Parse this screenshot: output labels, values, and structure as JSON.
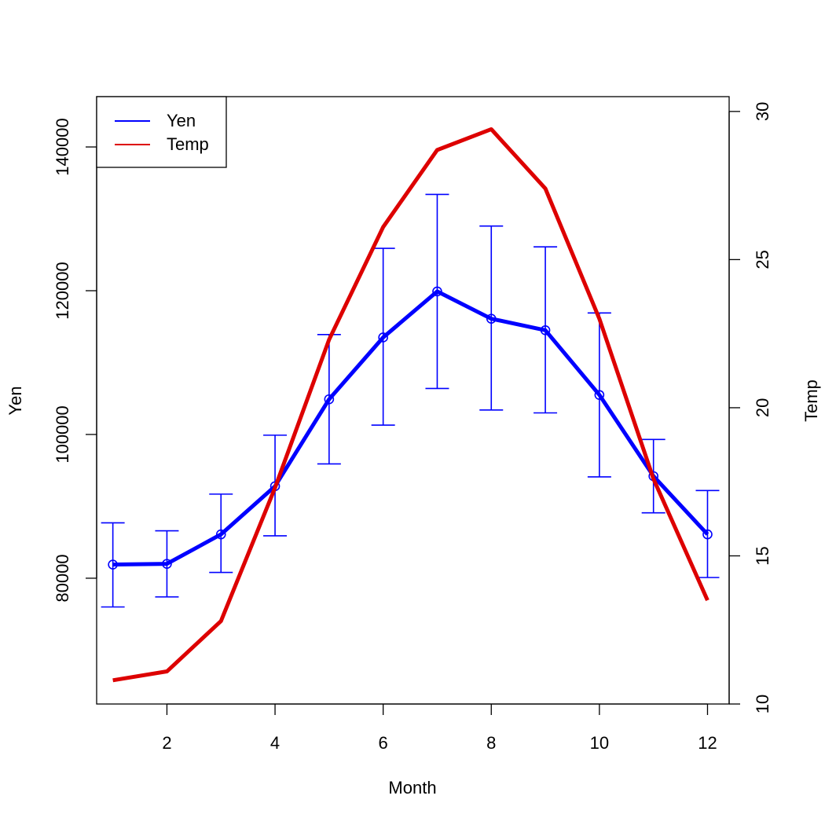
{
  "chart_data": {
    "type": "line",
    "xlabel": "Month",
    "ylabel_left": "Yen",
    "ylabel_right": "Temp",
    "x": [
      1,
      2,
      3,
      4,
      5,
      6,
      7,
      8,
      9,
      10,
      11,
      12
    ],
    "x_ticks": [
      2,
      4,
      6,
      8,
      10,
      12
    ],
    "xlim": [
      0.7,
      12.4
    ],
    "y_left_ticks": [
      80000,
      100000,
      120000,
      140000
    ],
    "y_left_lim": [
      62500,
      147000
    ],
    "y_right_ticks": [
      10,
      15,
      20,
      25,
      30
    ],
    "y_right_lim": [
      10,
      30.5
    ],
    "series": [
      {
        "name": "Yen",
        "axis": "left",
        "color": "#0000ff",
        "markers": "open-circle",
        "values": [
          81900,
          82000,
          86100,
          92800,
          104900,
          113500,
          119900,
          116100,
          114500,
          105500,
          94200,
          86100
        ],
        "error_low": [
          76000,
          77400,
          80800,
          85900,
          95900,
          101300,
          106400,
          103400,
          103000,
          94100,
          89100,
          80100
        ],
        "error_high": [
          87700,
          86600,
          91700,
          99900,
          113900,
          125900,
          133400,
          129000,
          126100,
          116900,
          99300,
          92200
        ]
      },
      {
        "name": "Temp",
        "axis": "right",
        "color": "#dd0000",
        "values": [
          10.8,
          11.1,
          12.8,
          17.3,
          22.3,
          26.1,
          28.7,
          29.4,
          27.4,
          23.0,
          17.6,
          13.5
        ]
      }
    ],
    "legend": {
      "position": "top-left",
      "entries": [
        "Yen",
        "Temp"
      ]
    },
    "grid": false
  }
}
